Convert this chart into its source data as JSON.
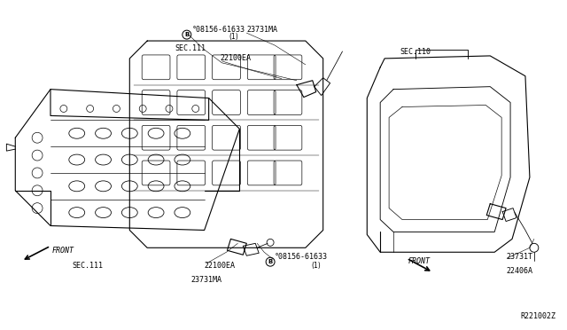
{
  "bg_color": "#ffffff",
  "line_color": "#000000",
  "line_width": 0.8,
  "fig_width": 6.4,
  "fig_height": 3.72,
  "dpi": 100,
  "labels": {
    "top_bolt_label": "°08156-61633",
    "top_bolt_sub": "(1)",
    "top_sensor_label": "23731MA",
    "top_ckp_label": "22100EA",
    "sec111_top": "SEC.111",
    "sec111_bot": "SEC.111",
    "sec110": "SEC.110",
    "front_left": "FRONT",
    "front_right": "FRONT",
    "bot_ckp_label": "22100EA",
    "bot_sensor_label": "23731MA",
    "bot_bolt_label": "°08156-61633",
    "bot_bolt_sub": "(1)",
    "right_sensor1": "23731T",
    "right_sensor2": "22406A",
    "ref_code": "R221002Z"
  }
}
